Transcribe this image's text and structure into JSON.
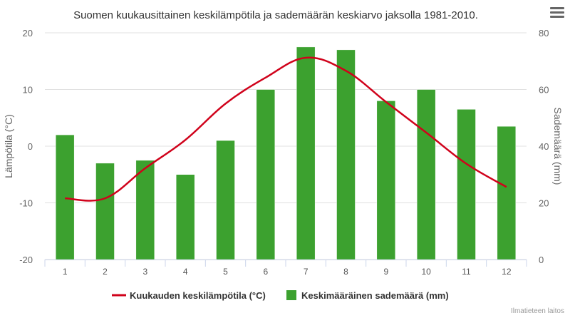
{
  "chart_data": {
    "type": "bar+line",
    "title": "Suomen kuukausittainen keskilämpötila ja sademäärän keskiarvo jaksolla 1981-2010.",
    "categories": [
      "1",
      "2",
      "3",
      "4",
      "5",
      "6",
      "7",
      "8",
      "9",
      "10",
      "11",
      "12"
    ],
    "y_left": {
      "label": "Lämpötila (°C)",
      "range": [
        -20,
        20
      ],
      "ticks": [
        -20,
        -10,
        0,
        10,
        20
      ]
    },
    "y_right": {
      "label": "Sademäärä (mm)",
      "range": [
        0,
        80
      ],
      "ticks": [
        0,
        20,
        40,
        60,
        80
      ]
    },
    "series": [
      {
        "name": "Kuukauden keskilämpötila (°C)",
        "type": "spline",
        "axis": "left",
        "color": "#d0021b",
        "values": [
          -9.2,
          -9.2,
          -3.9,
          1.1,
          7.5,
          12.1,
          15.6,
          13.3,
          7.8,
          2.4,
          -3.1,
          -7.2
        ]
      },
      {
        "name": "Keskimääräinen sademäärä (mm)",
        "type": "column",
        "axis": "right",
        "color": "#3ca12f",
        "values": [
          44,
          34,
          35,
          30,
          42,
          60,
          75,
          74,
          56,
          60,
          53,
          47
        ]
      }
    ],
    "grid": true,
    "legend": "bottom"
  },
  "credits": "Ilmatieteen laitos",
  "menu_icon": "hamburger-menu-icon"
}
